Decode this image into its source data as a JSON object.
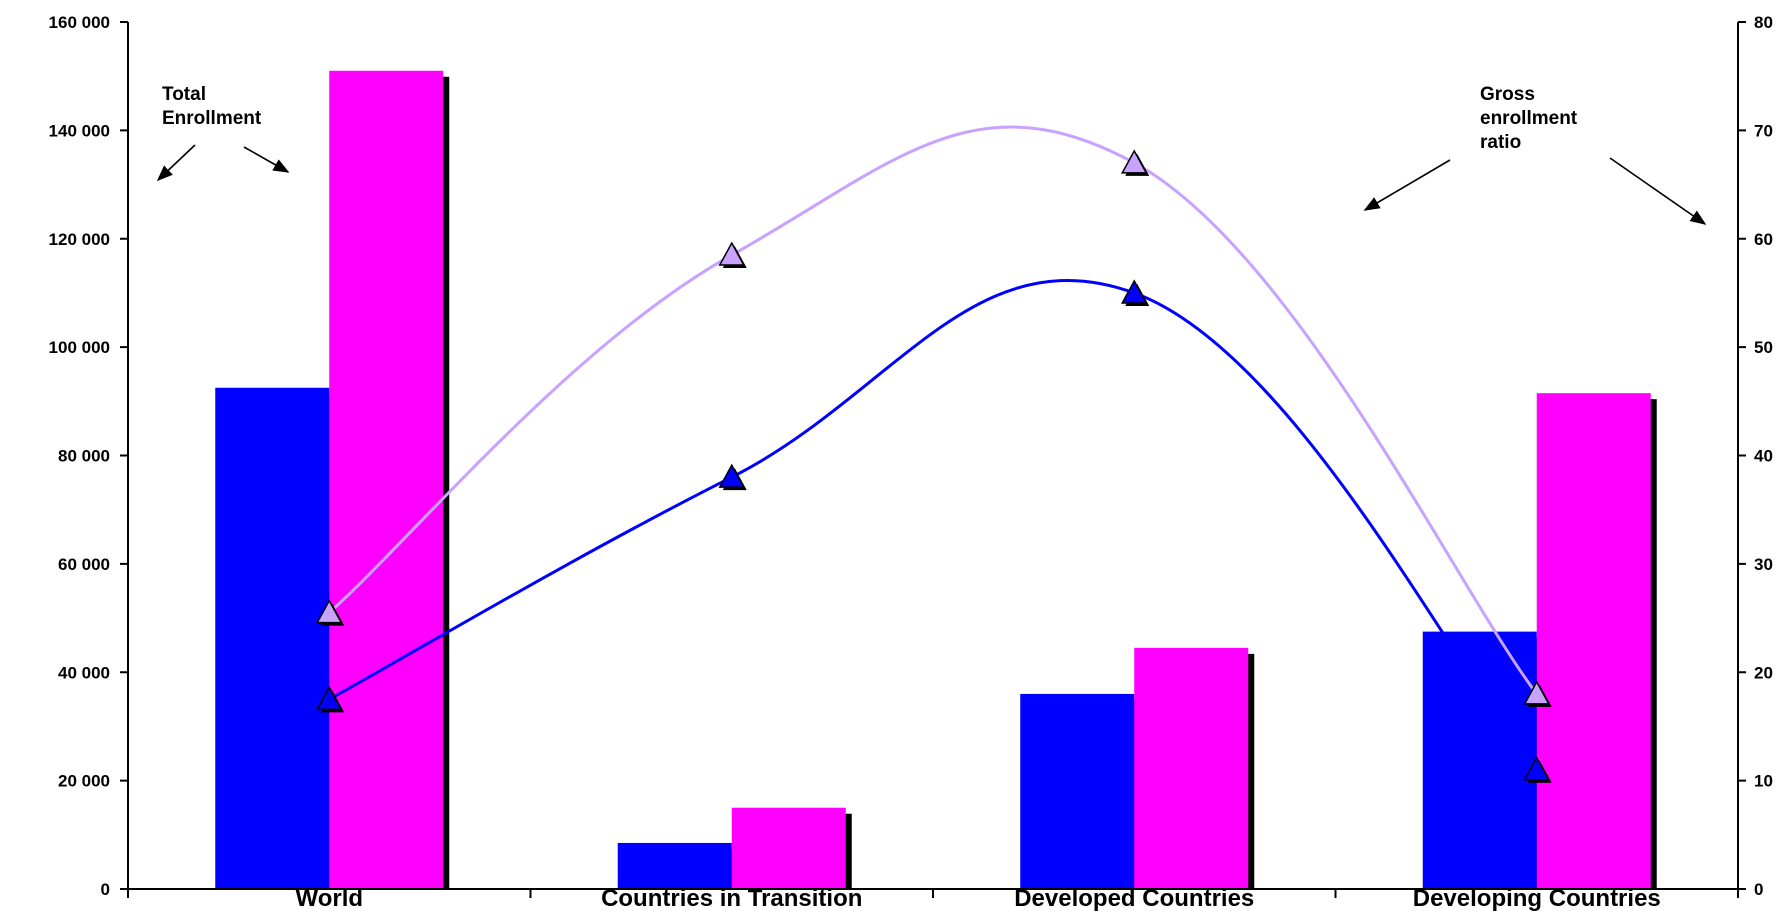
{
  "chart_data": {
    "type": "bar",
    "categories": [
      "World",
      "Countries in Transition",
      "Developed Countries",
      "Developing Countries"
    ],
    "series": [
      {
        "type": "bar",
        "axis": "left",
        "color": "#0000ff",
        "values": [
          92500,
          8500,
          36000,
          47500
        ]
      },
      {
        "type": "bar",
        "axis": "left",
        "color": "#ff00ff",
        "values": [
          151000,
          15000,
          44500,
          91500
        ]
      },
      {
        "type": "line",
        "axis": "right",
        "color": "#0000ff",
        "marker": "triangle",
        "values": [
          17.5,
          38,
          55,
          11
        ]
      },
      {
        "type": "line",
        "axis": "right",
        "color": "#c8a2ff",
        "marker": "triangle",
        "values": [
          25.5,
          58.5,
          67,
          18
        ]
      }
    ],
    "y_left": {
      "range": [
        0,
        160000
      ],
      "tick_values": [
        0,
        20000,
        40000,
        60000,
        80000,
        100000,
        120000,
        140000,
        160000
      ],
      "tick_labels": [
        "0",
        "20 000",
        "40 000",
        "60 000",
        "80 000",
        "100 000",
        "120 000",
        "140 000",
        "160 000"
      ]
    },
    "y_right": {
      "range": [
        0,
        80
      ],
      "tick_values": [
        0,
        10,
        20,
        30,
        40,
        50,
        60,
        70,
        80
      ],
      "tick_labels": [
        "0",
        "10",
        "20",
        "30",
        "40",
        "50",
        "60",
        "70",
        "80"
      ]
    },
    "annotations": {
      "left_lines": [
        "Total",
        "Enrollment"
      ],
      "right_lines": [
        "Gross",
        "enrollment",
        "ratio"
      ]
    },
    "grid": false,
    "legend": "none"
  }
}
